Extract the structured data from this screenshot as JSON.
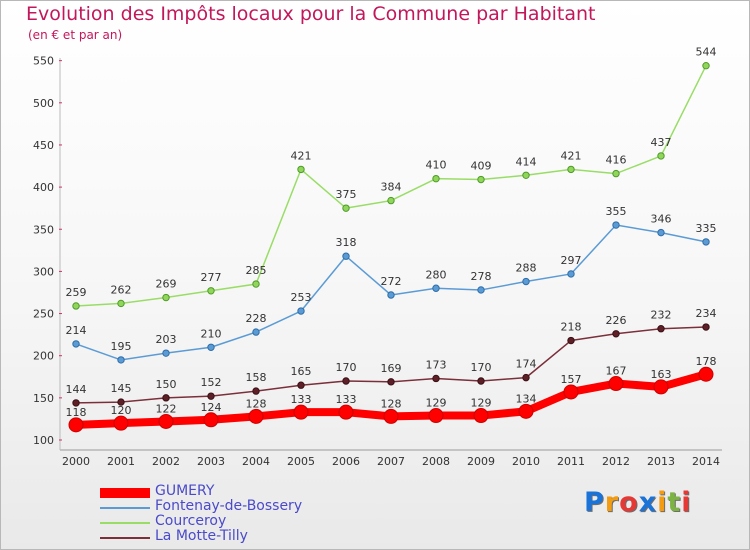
{
  "chart_data": {
    "type": "line",
    "title": "Evolution des Impôts locaux pour la Commune par Habitant",
    "subtitle": "(en € et par an)",
    "xlabel": "",
    "ylabel": "",
    "x": [
      "2000",
      "2001",
      "2002",
      "2003",
      "2004",
      "2005",
      "2006",
      "2007",
      "2008",
      "2009",
      "2010",
      "2011",
      "2012",
      "2013",
      "2014"
    ],
    "yticks": [
      "100",
      "150",
      "200",
      "250",
      "300",
      "350",
      "400",
      "450",
      "500",
      "550"
    ],
    "ylim": [
      100,
      560
    ],
    "grid": false,
    "legend_position": "bottom-left",
    "series": [
      {
        "name": "GUMERY",
        "color": "#ff0000",
        "values": [
          118,
          120,
          122,
          124,
          128,
          133,
          133,
          128,
          129,
          129,
          134,
          157,
          167,
          163,
          178
        ],
        "labels": [
          "118",
          "120",
          "122",
          "124",
          "128",
          "133",
          "133",
          "128",
          "129",
          "129",
          "134",
          "157",
          "167",
          "163",
          "178"
        ]
      },
      {
        "name": "Fontenay-de-Bossery",
        "color": "#5b9bd5",
        "values": [
          214,
          195,
          203,
          210,
          228,
          253,
          318,
          272,
          280,
          278,
          288,
          297,
          355,
          346,
          335
        ],
        "labels": [
          "214",
          "195",
          "203",
          "210",
          "228",
          "253",
          "318",
          "272",
          "280",
          "278",
          "288",
          "297",
          "355",
          "346",
          "335"
        ]
      },
      {
        "name": "Courceroy",
        "color": "#99dd66",
        "values": [
          259,
          262,
          269,
          277,
          285,
          421,
          375,
          384,
          410,
          409,
          414,
          421,
          416,
          437,
          544
        ],
        "labels": [
          "259",
          "262",
          "269",
          "277",
          "285",
          "421",
          "375",
          "384",
          "410",
          "409",
          "414",
          "421",
          "416",
          "437",
          "544"
        ]
      },
      {
        "name": "La Motte-Tilly",
        "color": "#7a2f3a",
        "values": [
          144,
          145,
          150,
          152,
          158,
          165,
          170,
          169,
          173,
          170,
          174,
          218,
          226,
          232,
          234
        ],
        "labels": [
          "144",
          "145",
          "150",
          "152",
          "158",
          "165",
          "170",
          "169",
          "173",
          "170",
          "174",
          "218",
          "226",
          "232",
          "234"
        ]
      }
    ]
  },
  "logo": {
    "letters": [
      "P",
      "r",
      "o",
      "x",
      "i",
      "t",
      "i"
    ],
    "colors": [
      "#1a73d9",
      "#f39c12",
      "#e53935",
      "#1a73d9",
      "#f39c12",
      "#7cb342",
      "#e53935"
    ]
  }
}
